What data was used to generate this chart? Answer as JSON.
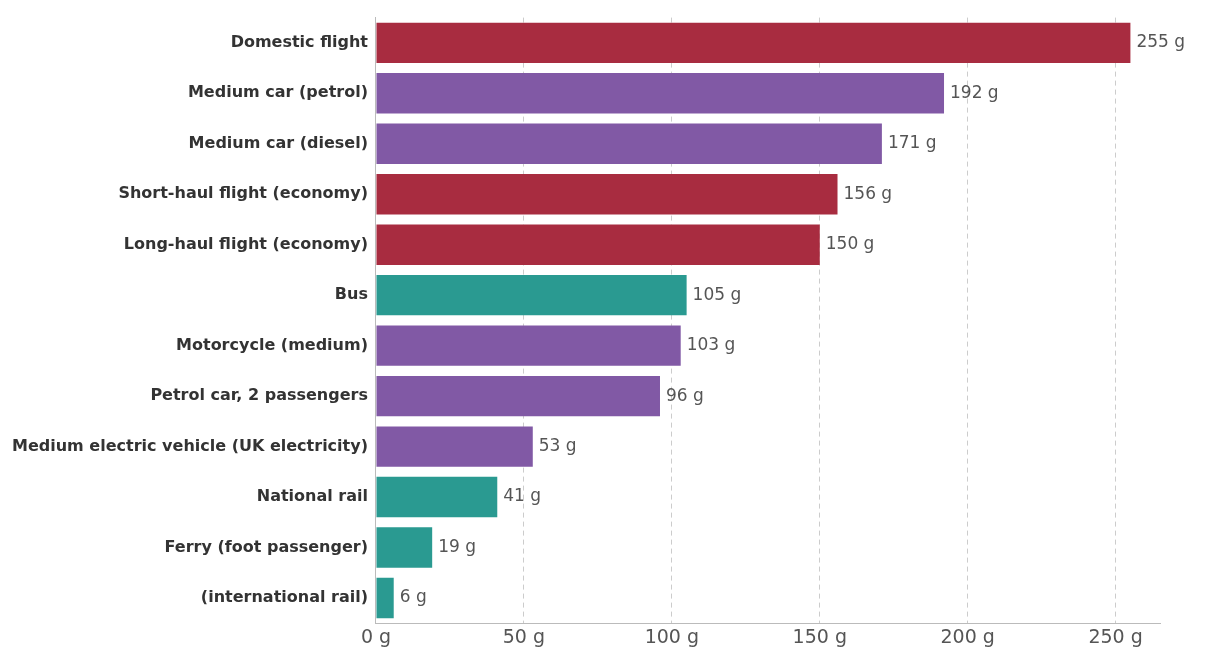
{
  "chart_data": {
    "type": "bar",
    "orientation": "horizontal",
    "categories": [
      "Domestic flight",
      "Medium car (petrol)",
      "Medium car (diesel)",
      "Short-haul flight (economy)",
      "Long-haul flight (economy)",
      "Bus",
      "Motorcycle (medium)",
      "Petrol car, 2 passengers",
      "Medium electric vehicle (UK electricity)",
      "National rail",
      "Ferry (foot passenger)",
      "(international rail)"
    ],
    "values": [
      255,
      192,
      171,
      156,
      150,
      105,
      103,
      96,
      53,
      41,
      19,
      6
    ],
    "colors": [
      "#a82c40",
      "#8159a5",
      "#8159a5",
      "#a82c40",
      "#a82c40",
      "#2a9a91",
      "#8159a5",
      "#8159a5",
      "#8159a5",
      "#2a9a91",
      "#2a9a91",
      "#2a9a91"
    ],
    "value_labels": [
      "255 g",
      "192 g",
      "171 g",
      "156 g",
      "150 g",
      "105 g",
      "103 g",
      "96 g",
      "53 g",
      "41 g",
      "19 g",
      "6 g"
    ],
    "xlim": [
      0,
      265
    ],
    "xticks": [
      {
        "value": 0,
        "label": "0 g"
      },
      {
        "value": 50,
        "label": "50 g"
      },
      {
        "value": 100,
        "label": "100 g"
      },
      {
        "value": 150,
        "label": "150 g"
      },
      {
        "value": 200,
        "label": "200 g"
      },
      {
        "value": 250,
        "label": "250 g"
      }
    ],
    "grid": "x",
    "legend": false
  }
}
